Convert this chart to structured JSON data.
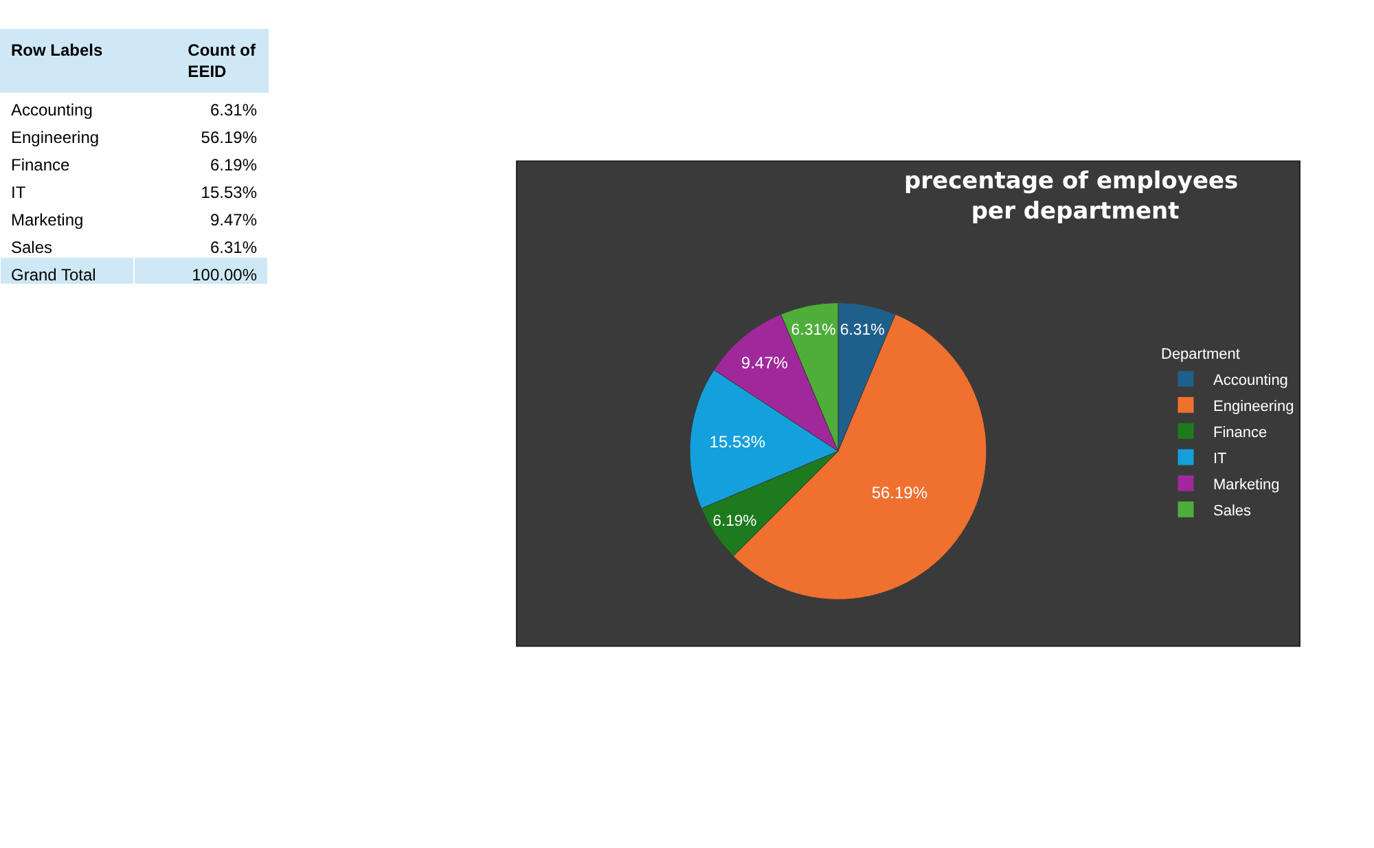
{
  "chart_data": [
    {
      "type": "other",
      "xlabel": "Row Labels",
      "ylabel": "Count of EEID",
      "categories": [
        "Accounting",
        "Engineering",
        "Finance",
        "IT",
        "Marketing",
        "Sales"
      ],
      "value_labels": [
        "6.31%",
        "56.19%",
        "6.19%",
        "15.53%",
        "9.47%",
        "6.31%"
      ],
      "annotations": [
        "Grand Total",
        "100.00%"
      ]
    },
    {
      "type": "pie",
      "title": "precentage of employees  per department",
      "legend_title": "Department",
      "legend": "right",
      "categories": [
        "Accounting",
        "Engineering",
        "Finance",
        "IT",
        "Marketing",
        "Sales"
      ],
      "values": [
        6.31,
        56.19,
        6.19,
        15.53,
        9.47,
        6.31
      ],
      "colors": [
        "#1f5f8b",
        "#f07030",
        "#1e7a1e",
        "#14a0dc",
        "#a0289b",
        "#4fae3a"
      ],
      "value_labels": [
        "6.31%",
        "56.19%",
        "6.19%",
        "15.53%",
        "9.47%",
        "6.31%"
      ]
    }
  ]
}
